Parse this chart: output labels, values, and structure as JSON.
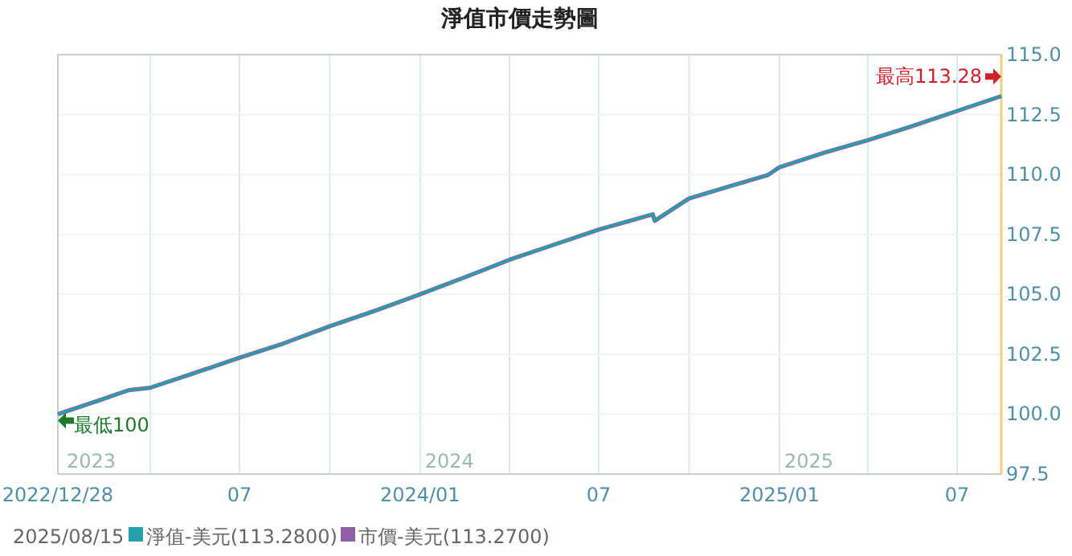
{
  "chart_data": {
    "type": "line",
    "title": "淨值市價走勢圖",
    "legend_title": "2025/08/15",
    "x": [
      "2022-12-28",
      "2023-02-10",
      "2023-03-10",
      "2023-04-01",
      "2023-05-15",
      "2023-07-01",
      "2023-08-15",
      "2023-10-01",
      "2023-11-15",
      "2024-01-01",
      "2024-02-15",
      "2024-04-01",
      "2024-05-15",
      "2024-07-01",
      "2024-08-25",
      "2024-08-27",
      "2024-10-01",
      "2024-11-15",
      "2024-12-20",
      "2025-01-01",
      "2025-02-15",
      "2025-04-01",
      "2025-05-15",
      "2025-07-01",
      "2025-08-15"
    ],
    "series": [
      {
        "name": "淨值-美元(113.2800)",
        "color": "#26a0a8",
        "values": [
          100.0,
          100.6,
          101.0,
          101.1,
          101.7,
          102.35,
          102.95,
          103.67,
          104.3,
          105.0,
          105.7,
          106.44,
          107.05,
          107.7,
          108.34,
          108.07,
          109.0,
          109.55,
          109.97,
          110.3,
          110.9,
          111.43,
          112.0,
          112.65,
          113.28
        ]
      },
      {
        "name": "市價-美元(113.2700)",
        "color": "#8e5ea2",
        "values": [
          100.0,
          100.6,
          101.0,
          101.1,
          101.7,
          102.35,
          102.95,
          103.67,
          104.3,
          105.0,
          105.7,
          106.44,
          107.05,
          107.7,
          108.34,
          108.07,
          109.0,
          109.55,
          109.97,
          110.3,
          110.9,
          111.43,
          112.0,
          112.65,
          113.27
        ]
      }
    ],
    "xlim": [
      "2022-12-28",
      "2025-08-15"
    ],
    "xticks": [
      {
        "value": "2022-12-28",
        "label": "2022/12/28"
      },
      {
        "value": "2023-04-01",
        "label": null
      },
      {
        "value": "2023-07-01",
        "label": "07"
      },
      {
        "value": "2023-10-01",
        "label": null
      },
      {
        "value": "2024-01-01",
        "label": "2024/01"
      },
      {
        "value": "2024-04-01",
        "label": null
      },
      {
        "value": "2024-07-01",
        "label": "07"
      },
      {
        "value": "2024-10-01",
        "label": null
      },
      {
        "value": "2025-01-01",
        "label": "2025/01"
      },
      {
        "value": "2025-04-01",
        "label": null
      },
      {
        "value": "2025-07-01",
        "label": "07"
      }
    ],
    "ylim": [
      97.5,
      115
    ],
    "yticks": [
      97.5,
      {
        "value": 100,
        "label": "100.0"
      },
      102.5,
      {
        "value": 105,
        "label": "105.0"
      },
      107.5,
      {
        "value": 110,
        "label": "110.0"
      },
      112.5,
      {
        "value": 115,
        "label": "115.0"
      }
    ],
    "annotations": [
      {
        "text": "最低100",
        "x": "2022-12-28",
        "y": 100
      },
      {
        "text": "最高113.28",
        "x": "2025-08-15",
        "y": 113.28
      },
      "2023",
      "2024",
      "2025"
    ],
    "grid": true,
    "legend": "bottom left",
    "line_style": "solid",
    "marker": "none"
  }
}
